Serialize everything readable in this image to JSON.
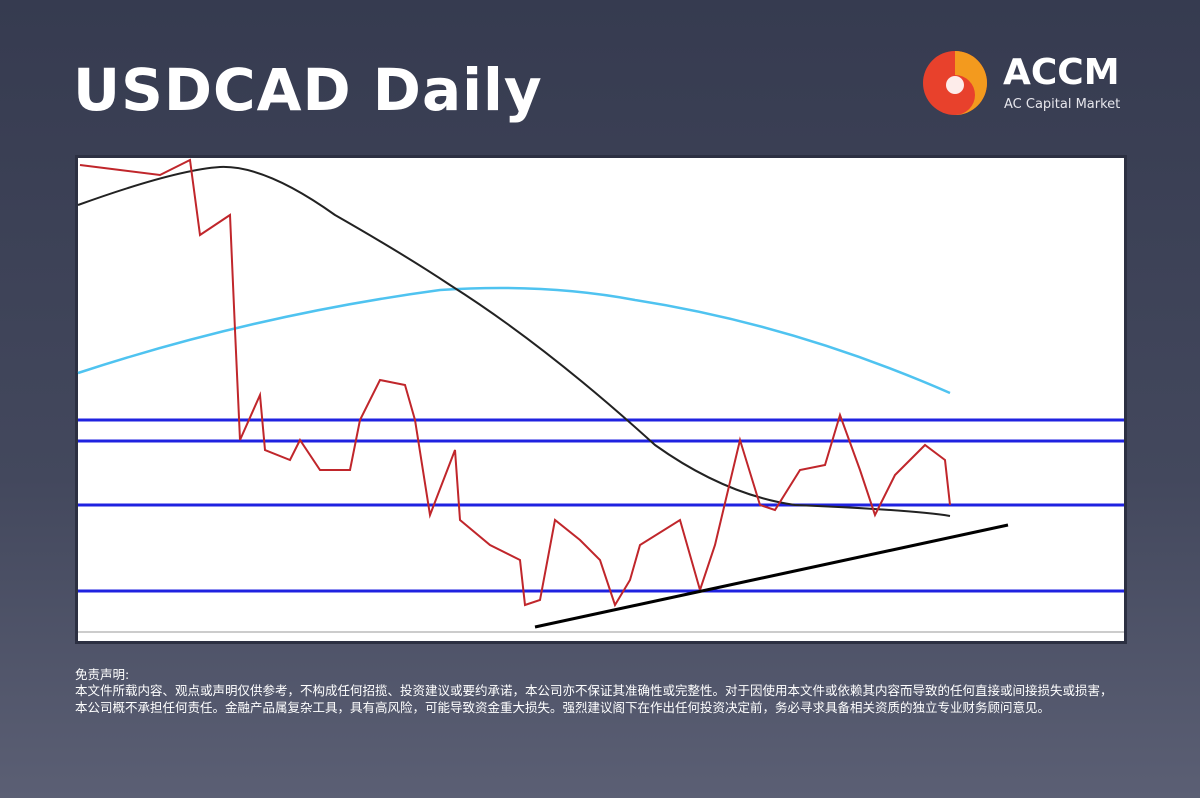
{
  "header": {
    "title": "USDCAD Daily"
  },
  "brand": {
    "name": "ACCM",
    "subtitle": "AC Capital Market"
  },
  "disclaimer": {
    "title": "免责声明:",
    "text": " 本文件所载内容、观点或声明仅供参考，不构成任何招揽、投资建议或要约承诺，本公司亦不保证其准确性或完整性。对于因使用本文件或依赖其内容而导致的任何直接或间接损失或损害，本公司概不承担任何责任。金融产品属复杂工具，具有高风险，可能导致资金重大损失。强烈建议阁下在作出任何投资决定前，务必寻求具备相关资质的独立专业财务顾问意见。"
  }
}
